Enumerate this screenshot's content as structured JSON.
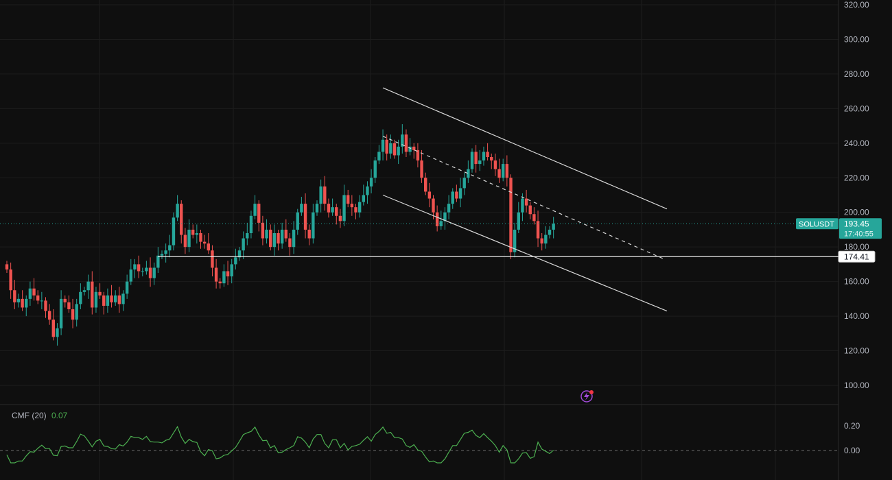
{
  "chart_data": [
    {
      "type": "candlestick",
      "symbol": "SOLUSDT",
      "last_price": "193.45",
      "countdown": "17:40:55",
      "horizontal_line_price": "174.41",
      "ylim": [
        88,
        325
      ],
      "y_ticks": [
        "320.00",
        "300.00",
        "280.00",
        "260.00",
        "240.00",
        "220.00",
        "200.00",
        "180.00",
        "160.00",
        "140.00",
        "120.00",
        "100.00"
      ],
      "grid": true,
      "candles": [
        [
          170,
          167
        ],
        [
          167,
          155
        ],
        [
          155,
          148
        ],
        [
          148,
          150
        ],
        [
          150,
          145
        ],
        [
          145,
          150
        ],
        [
          150,
          156
        ],
        [
          156,
          152
        ],
        [
          152,
          149
        ],
        [
          149,
          149
        ],
        [
          149,
          143
        ],
        [
          143,
          138
        ],
        [
          138,
          128
        ],
        [
          128,
          133
        ],
        [
          133,
          150
        ],
        [
          150,
          148
        ],
        [
          148,
          144
        ],
        [
          144,
          138
        ],
        [
          138,
          147
        ],
        [
          147,
          154
        ],
        [
          154,
          155
        ],
        [
          155,
          160
        ],
        [
          160,
          145
        ],
        [
          145,
          154
        ],
        [
          154,
          152
        ],
        [
          152,
          146
        ],
        [
          146,
          152
        ],
        [
          152,
          148
        ],
        [
          148,
          152
        ],
        [
          152,
          147
        ],
        [
          147,
          153
        ],
        [
          153,
          160
        ],
        [
          160,
          167
        ],
        [
          167,
          170
        ],
        [
          170,
          166
        ],
        [
          166,
          166
        ],
        [
          166,
          168
        ],
        [
          168,
          162
        ],
        [
          162,
          168
        ],
        [
          168,
          175
        ],
        [
          175,
          176
        ],
        [
          176,
          178
        ],
        [
          178,
          181
        ],
        [
          181,
          197
        ],
        [
          197,
          205
        ],
        [
          205,
          187
        ],
        [
          187,
          180
        ],
        [
          180,
          190
        ],
        [
          190,
          187
        ],
        [
          187,
          188
        ],
        [
          188,
          183
        ],
        [
          183,
          182
        ],
        [
          182,
          178
        ],
        [
          178,
          168
        ],
        [
          168,
          160
        ],
        [
          160,
          159
        ],
        [
          159,
          166
        ],
        [
          166,
          163
        ],
        [
          163,
          170
        ],
        [
          170,
          174
        ],
        [
          174,
          178
        ],
        [
          178,
          185
        ],
        [
          185,
          188
        ],
        [
          188,
          198
        ],
        [
          198,
          205
        ],
        [
          205,
          194
        ],
        [
          194,
          185
        ],
        [
          185,
          190
        ],
        [
          190,
          180
        ],
        [
          180,
          188
        ],
        [
          188,
          182
        ],
        [
          182,
          190
        ],
        [
          190,
          185
        ],
        [
          185,
          180
        ],
        [
          180,
          190
        ],
        [
          190,
          200
        ],
        [
          200,
          205
        ],
        [
          205,
          190
        ],
        [
          190,
          185
        ],
        [
          185,
          200
        ],
        [
          200,
          205
        ],
        [
          205,
          215
        ],
        [
          215,
          205
        ],
        [
          205,
          200
        ],
        [
          200,
          203
        ],
        [
          203,
          198
        ],
        [
          198,
          195
        ],
        [
          195,
          210
        ],
        [
          210,
          205
        ],
        [
          205,
          203
        ],
        [
          203,
          200
        ],
        [
          200,
          206
        ],
        [
          206,
          210
        ],
        [
          210,
          215
        ],
        [
          215,
          220
        ],
        [
          220,
          230
        ],
        [
          230,
          235
        ],
        [
          235,
          242
        ],
        [
          242,
          234
        ],
        [
          234,
          240
        ],
        [
          240,
          233
        ],
        [
          233,
          238
        ],
        [
          238,
          245
        ],
        [
          245,
          235
        ],
        [
          235,
          238
        ],
        [
          238,
          236
        ],
        [
          236,
          230
        ],
        [
          230,
          220
        ],
        [
          220,
          212
        ],
        [
          212,
          208
        ],
        [
          208,
          200
        ],
        [
          200,
          192
        ],
        [
          192,
          195
        ],
        [
          195,
          200
        ],
        [
          200,
          205
        ],
        [
          205,
          212
        ],
        [
          212,
          208
        ],
        [
          208,
          214
        ],
        [
          214,
          220
        ],
        [
          220,
          225
        ],
        [
          225,
          235
        ],
        [
          235,
          228
        ],
        [
          228,
          230
        ],
        [
          230,
          235
        ],
        [
          235,
          232
        ],
        [
          232,
          230
        ],
        [
          230,
          225
        ],
        [
          225,
          220
        ],
        [
          220,
          228
        ],
        [
          228,
          220
        ],
        [
          220,
          177
        ],
        [
          177,
          190
        ],
        [
          190,
          200
        ],
        [
          200,
          208
        ],
        [
          208,
          204
        ],
        [
          204,
          199
        ],
        [
          199,
          195
        ],
        [
          195,
          185
        ],
        [
          185,
          182
        ],
        [
          182,
          187
        ],
        [
          187,
          190
        ],
        [
          190,
          193.45
        ]
      ],
      "indicator": {
        "name": "CMF (20)",
        "value": "0.07",
        "y_ticks": [
          "0.20",
          "0.00"
        ]
      }
    }
  ]
}
